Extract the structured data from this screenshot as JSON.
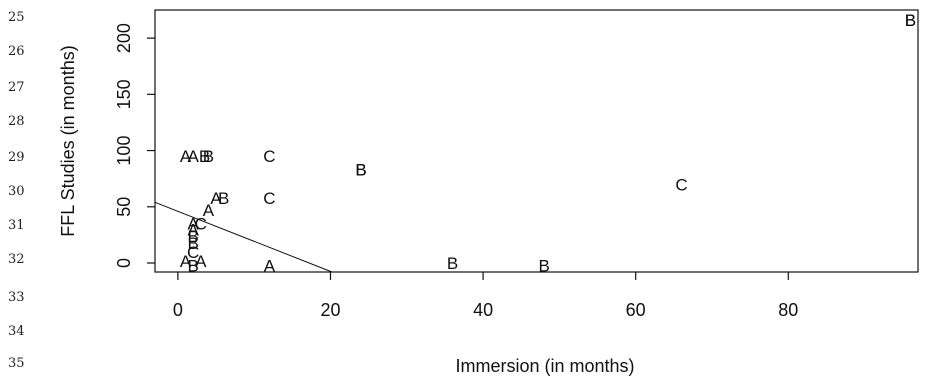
{
  "line_numbers": [
    "25",
    "26",
    "27",
    "28",
    "29",
    "30",
    "31",
    "32",
    "33",
    "34",
    "35"
  ],
  "chart_data": {
    "type": "scatter",
    "xlabel": "Immersion (in months)",
    "ylabel": "FFL Studies (in months)",
    "xlim": [
      -3,
      97
    ],
    "ylim": [
      -8,
      225
    ],
    "x_ticks": [
      0,
      20,
      40,
      60,
      80
    ],
    "y_ticks": [
      0,
      50,
      100,
      150,
      200
    ],
    "grid": false,
    "points": [
      {
        "x": 1,
        "y": 95,
        "label": "A"
      },
      {
        "x": 2,
        "y": 95,
        "label": "A"
      },
      {
        "x": 3.5,
        "y": 95,
        "label": "B"
      },
      {
        "x": 4,
        "y": 95,
        "label": "B"
      },
      {
        "x": 12,
        "y": 95,
        "label": "C"
      },
      {
        "x": 24,
        "y": 83,
        "label": "B"
      },
      {
        "x": 24,
        "y": 83,
        "label": "B"
      },
      {
        "x": 66,
        "y": 70,
        "label": "C"
      },
      {
        "x": 96,
        "y": 216,
        "label": "B"
      },
      {
        "x": 96,
        "y": 216,
        "label": "B"
      },
      {
        "x": 5,
        "y": 58,
        "label": "A"
      },
      {
        "x": 6,
        "y": 58,
        "label": "B"
      },
      {
        "x": 12,
        "y": 58,
        "label": "C"
      },
      {
        "x": 4,
        "y": 47,
        "label": "A"
      },
      {
        "x": 2,
        "y": 35,
        "label": "A"
      },
      {
        "x": 3,
        "y": 35,
        "label": "C"
      },
      {
        "x": 2,
        "y": 30,
        "label": "A"
      },
      {
        "x": 2,
        "y": 24,
        "label": "B"
      },
      {
        "x": 2,
        "y": 18,
        "label": "B"
      },
      {
        "x": 2,
        "y": 10,
        "label": "C"
      },
      {
        "x": 1,
        "y": 2,
        "label": "A"
      },
      {
        "x": 3,
        "y": 2,
        "label": "A"
      },
      {
        "x": 2,
        "y": -2,
        "label": "B"
      },
      {
        "x": 12,
        "y": -2,
        "label": "A"
      },
      {
        "x": 36,
        "y": 0,
        "label": "B"
      },
      {
        "x": 48,
        "y": -2,
        "label": "B"
      }
    ],
    "reference_line": {
      "x": [
        -3,
        20.2
      ],
      "y": [
        54,
        -8
      ]
    }
  }
}
